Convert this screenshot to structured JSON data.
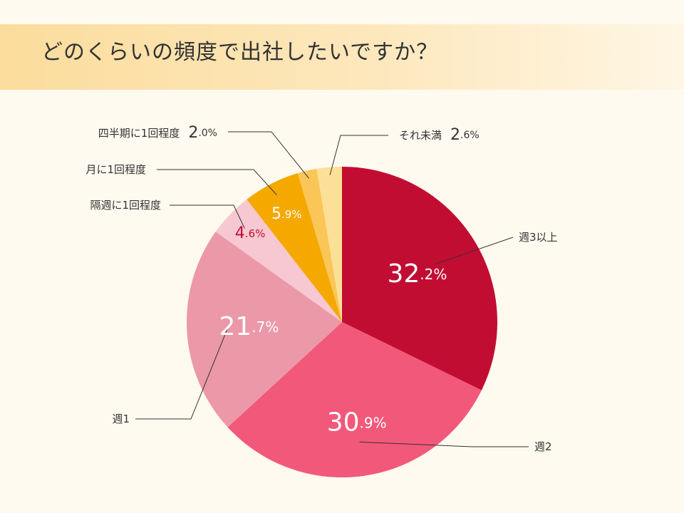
{
  "header": {
    "title": "どのくらいの頻度で出社したいですか？"
  },
  "chart_data": {
    "type": "pie",
    "title": "どのくらいの頻度で出社したいですか？",
    "unit": "%",
    "start": "12 o'clock, clockwise",
    "slices": [
      {
        "label": "週3以上",
        "value": 32.2,
        "int": "32",
        "dec": ".2",
        "color": "#c20d33",
        "text_color": "#ffffff"
      },
      {
        "label": "週2",
        "value": 30.9,
        "int": "30",
        "dec": ".9",
        "color": "#f2587a",
        "text_color": "#ffffff"
      },
      {
        "label": "週1",
        "value": 21.7,
        "int": "21",
        "dec": ".7",
        "color": "#eb98a9",
        "text_color": "#ffffff"
      },
      {
        "label": "隔週に1回程度",
        "value": 4.6,
        "int": "4",
        "dec": ".6",
        "color": "#f7c8d2",
        "text_color": "#c20d33"
      },
      {
        "label": "月に1回程度",
        "value": 5.9,
        "int": "5",
        "dec": ".9",
        "color": "#f5a800",
        "text_color": "#ffffff"
      },
      {
        "label": "四半期に1回程度",
        "value": 2.0,
        "int": "2",
        "dec": ".0",
        "color": "#fbc658",
        "text_color": "#333333"
      },
      {
        "label": "それ未満",
        "value": 2.6,
        "int": "2",
        "dec": ".6",
        "color": "#fde097",
        "text_color": "#333333"
      }
    ]
  }
}
